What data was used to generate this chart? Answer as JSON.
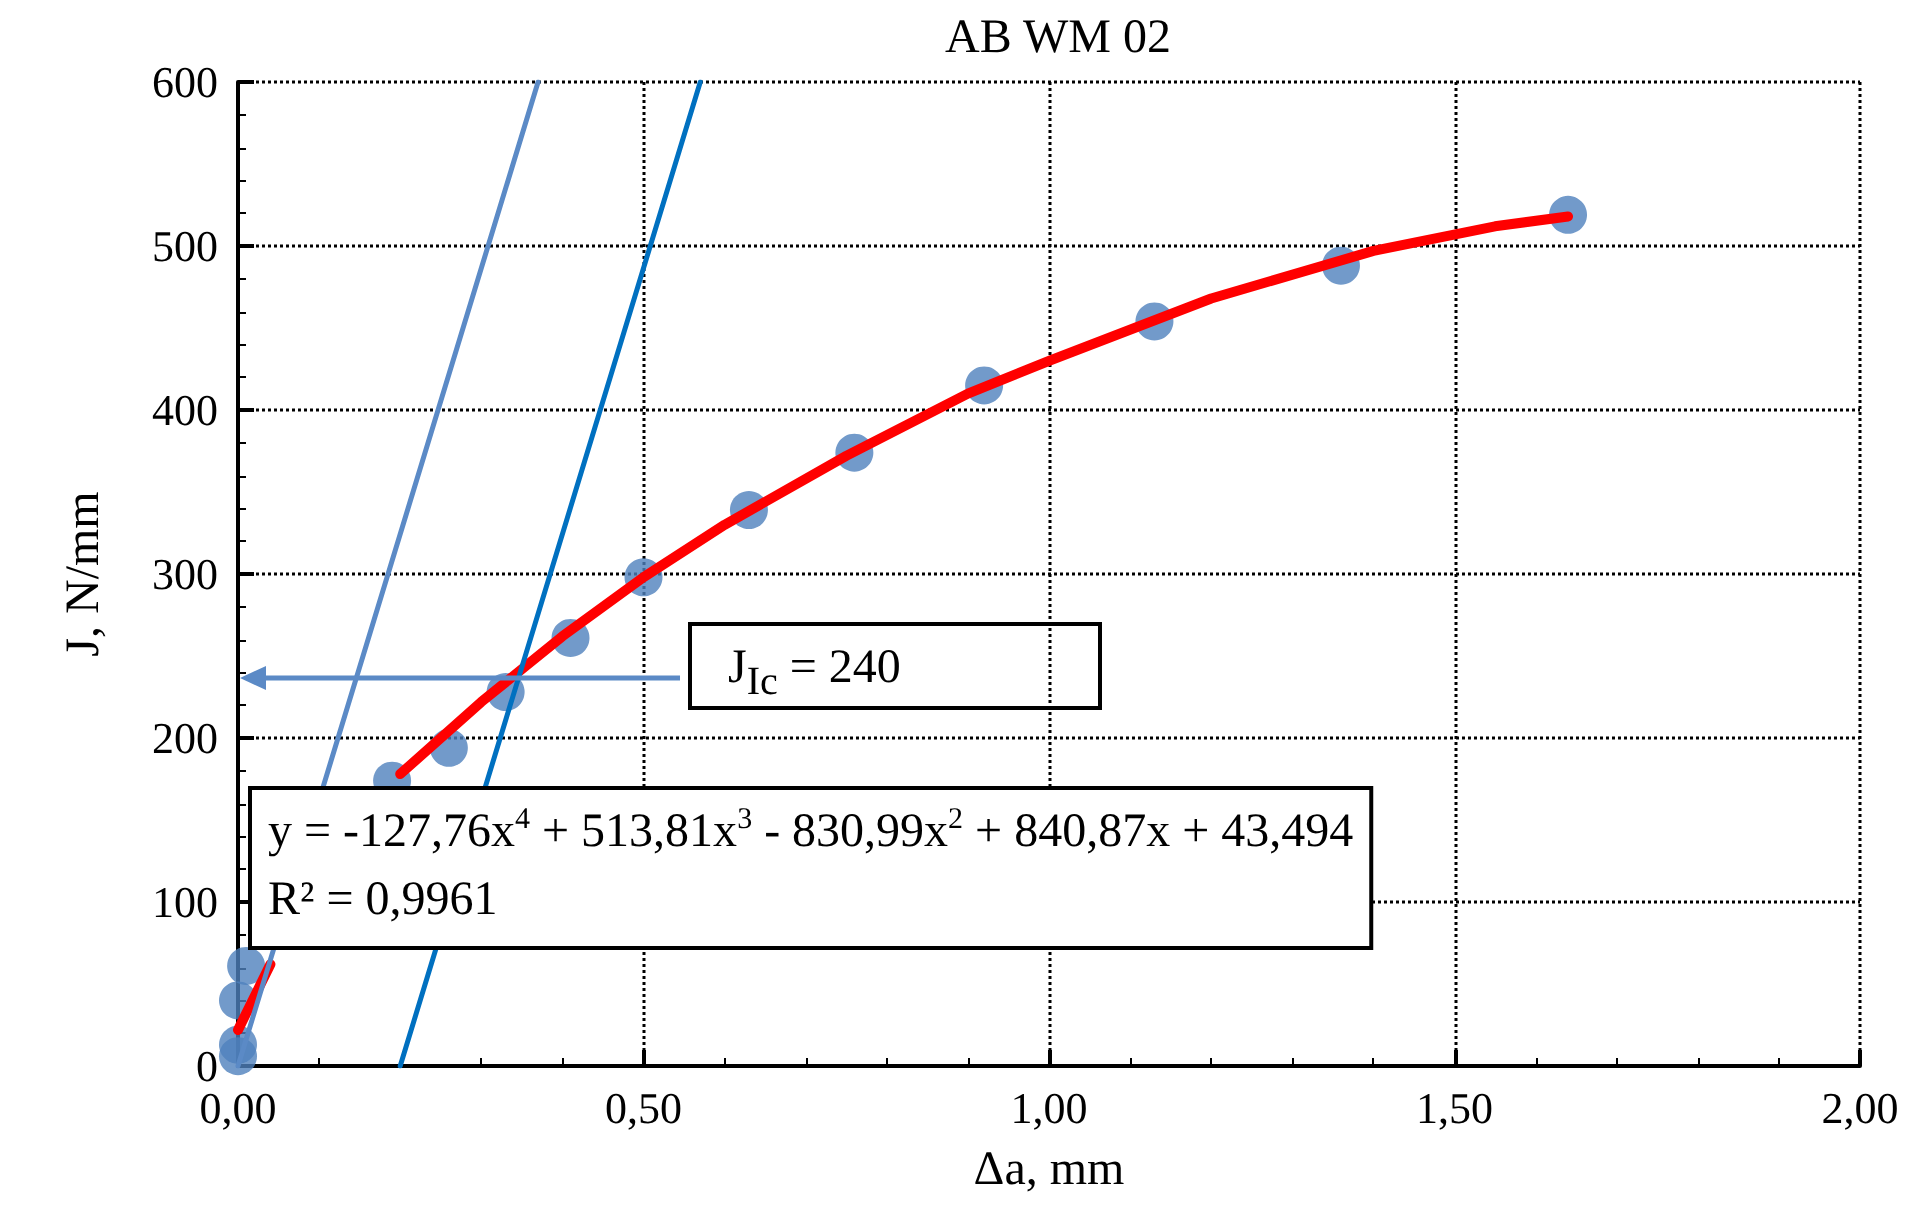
{
  "chart_data": {
    "type": "scatter",
    "title": "AB WM 02",
    "xlabel": "Δa, mm",
    "ylabel": "J, N/mm",
    "xlim": [
      0,
      2
    ],
    "xticks": [
      {
        "value": 0,
        "label": "0,00"
      },
      {
        "value": 0.5,
        "label": "0,50"
      },
      {
        "value": 1,
        "label": "1,00"
      },
      {
        "value": 1.5,
        "label": "1,50"
      },
      {
        "value": 2,
        "label": "2,00"
      }
    ],
    "ylim": [
      0,
      600
    ],
    "yticks": [
      0,
      100,
      200,
      300,
      400,
      500,
      600
    ],
    "grid": true,
    "series": [
      {
        "color": "#4f81bd",
        "marker": "circle",
        "x": [
          0,
          0,
          0,
          0.01,
          0.19,
          0.26,
          0.33,
          0.41,
          0.5,
          0.63,
          0.76,
          0.92,
          1.13,
          1.36,
          1.64
        ],
        "values": [
          6,
          13,
          40,
          61,
          174,
          194,
          228,
          261,
          298,
          339,
          374,
          415,
          454,
          488,
          519
        ]
      },
      {
        "type": "line",
        "color": "#ff0000",
        "marker": "none",
        "line_style": "solid",
        "x": [
          0,
          0.04,
          0.1,
          0.2,
          0.3,
          0.4,
          0.5,
          0.6,
          0.75,
          0.9,
          1.0,
          1.2,
          1.4,
          1.55,
          1.64
        ],
        "values": [
          22,
          62,
          null,
          178,
          222,
          262,
          298,
          330,
          372,
          410,
          430,
          468,
          497,
          512,
          518
        ]
      },
      {
        "type": "line",
        "color": "#5b8ac6",
        "marker": "none",
        "line_style": "solid",
        "x": [
          0,
          0.37
        ],
        "values": [
          0,
          600
        ]
      },
      {
        "type": "line",
        "color": "#0070c0",
        "marker": "none",
        "line_style": "solid",
        "x": [
          0.2,
          0.57
        ],
        "values": [
          0,
          600
        ]
      }
    ],
    "annotations": [
      "J$_{Ic}$ = 240",
      "y = -127,76x$^{4}$ + 513,81x$^{3}$ - 830,99x$^{2}$ + 840,87x + 43,494",
      "R² = 0,9961"
    ]
  }
}
